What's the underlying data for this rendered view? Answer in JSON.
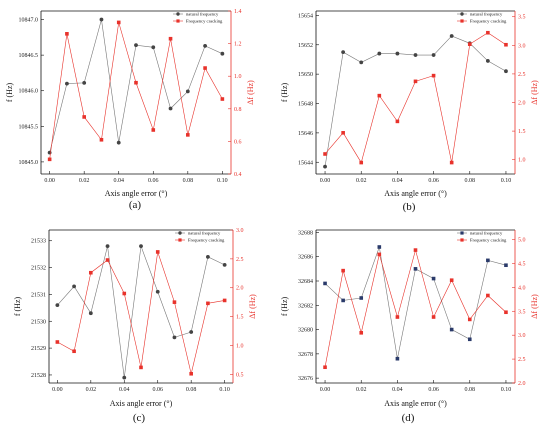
{
  "chart_data": [
    {
      "type": "line",
      "panel_label": "(a)",
      "xlabel": "Axis angle error (°)",
      "ylabel_left": "f (Hz)",
      "ylabel_right": "Δf (Hz)",
      "x": [
        0.0,
        0.01,
        0.02,
        0.03,
        0.04,
        0.05,
        0.06,
        0.07,
        0.08,
        0.09,
        0.1
      ],
      "x_ticks": [
        "0.00",
        "0.02",
        "0.04",
        "0.06",
        "0.08",
        "0.10"
      ],
      "left_ticks": [
        "10845.0",
        "10845.5",
        "10846.0",
        "10846.5",
        "10847.0"
      ],
      "right_ticks": [
        "0.4",
        "0.6",
        "0.8",
        "1.0",
        "1.2",
        "1.4"
      ],
      "xlim": [
        -0.005,
        0.105
      ],
      "ylim_left": [
        10844.83,
        10847.12
      ],
      "ylim_right": [
        0.4,
        1.4
      ],
      "series": [
        {
          "name": "natural frequency",
          "axis": "left",
          "color": "#444444",
          "marker": "circle",
          "values": [
            10845.13,
            10846.1,
            10846.11,
            10847.0,
            10845.27,
            10846.64,
            10846.61,
            10845.75,
            10845.99,
            10846.63,
            10846.52
          ]
        },
        {
          "name": "Frequency cracking",
          "axis": "right",
          "color": "#e8322b",
          "marker": "square",
          "values": [
            0.49,
            1.26,
            0.75,
            0.61,
            1.33,
            0.96,
            0.67,
            1.23,
            0.64,
            1.05,
            0.86
          ]
        }
      ]
    },
    {
      "type": "line",
      "panel_label": "(b)",
      "xlabel": "Axis angle error (°)",
      "ylabel_left": "f (Hz)",
      "ylabel_right": "Δf (Hz)",
      "x": [
        0.0,
        0.01,
        0.02,
        0.03,
        0.04,
        0.05,
        0.06,
        0.07,
        0.08,
        0.09,
        0.1
      ],
      "x_ticks": [
        "0.00",
        "0.02",
        "0.04",
        "0.06",
        "0.08",
        "0.10"
      ],
      "left_ticks": [
        "15644",
        "15646",
        "15648",
        "15650",
        "15652",
        "15654"
      ],
      "right_ticks": [
        "1.0",
        "1.5",
        "2.0",
        "2.5",
        "3.0",
        "3.5"
      ],
      "xlim": [
        -0.005,
        0.105
      ],
      "ylim_left": [
        15643.2,
        15654.3
      ],
      "ylim_right": [
        0.75,
        3.6
      ],
      "series": [
        {
          "name": "natural frequency",
          "axis": "left",
          "color": "#444444",
          "marker": "circle",
          "values": [
            15643.7,
            15651.5,
            15650.8,
            15651.4,
            15651.4,
            15651.3,
            15651.3,
            15652.6,
            15652.1,
            15650.9,
            15650.2
          ]
        },
        {
          "name": "Frequency cracking",
          "axis": "right",
          "color": "#e8322b",
          "marker": "square",
          "values": [
            1.1,
            1.47,
            0.95,
            2.12,
            1.67,
            2.37,
            2.47,
            0.95,
            3.02,
            3.22,
            3.01
          ]
        }
      ]
    },
    {
      "type": "line",
      "panel_label": "(c)",
      "xlabel": "Axis angle error (°)",
      "ylabel_left": "f (Hz)",
      "ylabel_right": "Δf (Hz)",
      "x": [
        0.0,
        0.01,
        0.02,
        0.03,
        0.04,
        0.05,
        0.06,
        0.07,
        0.08,
        0.09,
        0.1
      ],
      "x_ticks": [
        "0.00",
        "0.02",
        "0.04",
        "0.06",
        "0.08",
        "0.10"
      ],
      "left_ticks": [
        "21528",
        "21529",
        "21530",
        "21531",
        "21532",
        "21533"
      ],
      "right_ticks": [
        "0.5",
        "1.0",
        "1.5",
        "2.0",
        "2.5",
        "3.0"
      ],
      "xlim": [
        -0.005,
        0.105
      ],
      "ylim_left": [
        21527.7,
        21533.4
      ],
      "ylim_right": [
        0.35,
        3.0
      ],
      "series": [
        {
          "name": "natural frequency",
          "axis": "left",
          "color": "#444444",
          "marker": "circle",
          "values": [
            21530.6,
            21531.3,
            21530.3,
            21532.8,
            21527.9,
            21532.8,
            21531.1,
            21529.4,
            21529.6,
            21532.4,
            21532.1
          ]
        },
        {
          "name": "Frequency cracking",
          "axis": "right",
          "color": "#e8322b",
          "marker": "square",
          "values": [
            1.06,
            0.9,
            2.26,
            2.48,
            1.9,
            0.62,
            2.62,
            1.75,
            0.51,
            1.73,
            1.78
          ]
        }
      ]
    },
    {
      "type": "line",
      "panel_label": "(d)",
      "xlabel": "Axis angle error (°)",
      "ylabel_left": "f (Hz)",
      "ylabel_right": "Δf (Hz)",
      "x": [
        0.0,
        0.01,
        0.02,
        0.03,
        0.04,
        0.05,
        0.06,
        0.07,
        0.08,
        0.09,
        0.1
      ],
      "x_ticks": [
        "0.00",
        "0.02",
        "0.04",
        "0.06",
        "0.08",
        "0.10"
      ],
      "left_ticks": [
        "32676",
        "32678",
        "32680",
        "32682",
        "32684",
        "32686",
        "32688"
      ],
      "right_ticks": [
        "2.0",
        "2.5",
        "3.0",
        "3.5",
        "4.0",
        "4.5",
        "5.0"
      ],
      "xlim": [
        -0.005,
        0.105
      ],
      "ylim_left": [
        32675.6,
        32688.2
      ],
      "ylim_right": [
        2.0,
        5.2
      ],
      "series": [
        {
          "name": "natural frequency",
          "axis": "left",
          "color": "#2a3a6a",
          "marker": "square",
          "values": [
            32683.8,
            32682.4,
            32682.6,
            32686.8,
            32677.6,
            32685.0,
            32684.2,
            32680.0,
            32679.2,
            32685.7,
            32685.3
          ]
        },
        {
          "name": "Frequency cracking",
          "axis": "right",
          "color": "#e8322b",
          "marker": "square",
          "values": [
            2.33,
            4.35,
            3.05,
            4.69,
            3.38,
            4.78,
            3.38,
            4.15,
            3.33,
            3.83,
            3.48
          ]
        }
      ]
    }
  ]
}
